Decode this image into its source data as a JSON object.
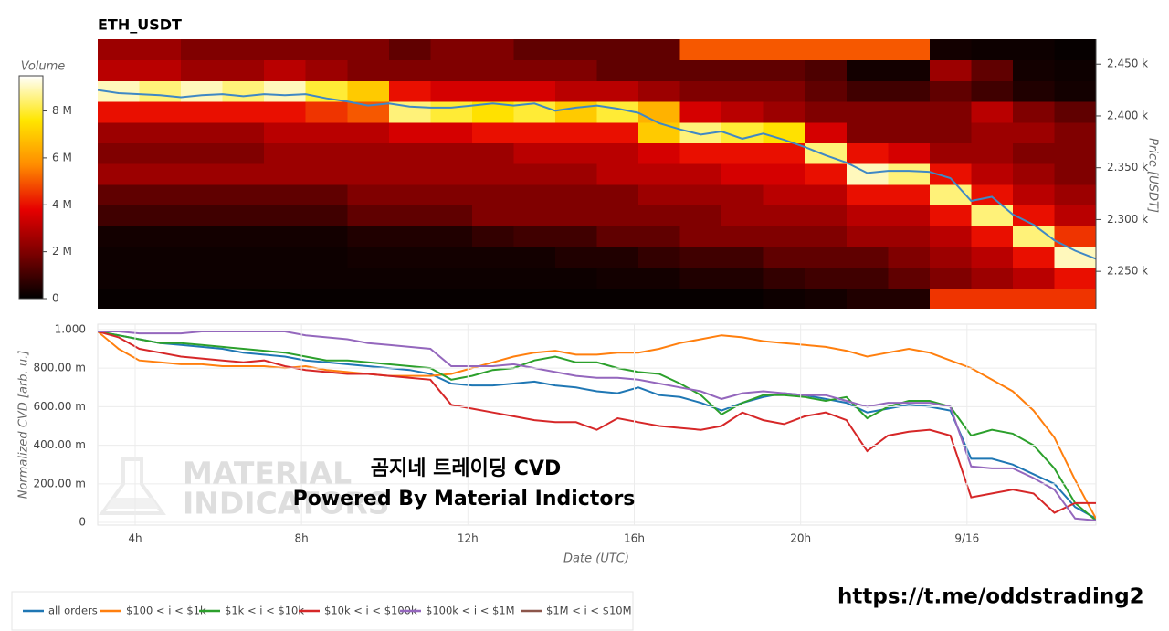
{
  "chart_data": [
    {
      "type": "heatmap",
      "title": "ETH_USDT",
      "x_bins": [
        3.1,
        4.1,
        5.1,
        6.1,
        7.1,
        8.1,
        9.1,
        10.1,
        11.1,
        12.1,
        13.1,
        14.1,
        15.1,
        16.1,
        17.1,
        18.1,
        19.1,
        20.1,
        21.1,
        22.1,
        23.1,
        24.1,
        25.1,
        26.1,
        27.1
      ],
      "y_bins": [
        2214,
        2234,
        2254,
        2274,
        2294,
        2314,
        2334,
        2354,
        2374,
        2394,
        2414,
        2434,
        2454,
        2474
      ],
      "z": [
        [
          0.1,
          0.1,
          0.1,
          0.1,
          0.1,
          0.1,
          0.1,
          0.1,
          0.1,
          0.1,
          0.1,
          0.1,
          0.1,
          0.1,
          0.1,
          0.1,
          0.2,
          0.3,
          0.5,
          0.5,
          4.5,
          4.5,
          4.5,
          4.5
        ],
        [
          0.2,
          0.2,
          0.2,
          0.2,
          0.2,
          0.2,
          0.2,
          0.2,
          0.2,
          0.2,
          0.2,
          0.2,
          0.3,
          0.3,
          0.5,
          0.5,
          0.8,
          1,
          1,
          1.5,
          2,
          2.5,
          3,
          4
        ],
        [
          0.2,
          0.2,
          0.2,
          0.2,
          0.2,
          0.2,
          0.3,
          0.3,
          0.3,
          0.3,
          0.3,
          0.5,
          0.5,
          0.8,
          1,
          1,
          1.5,
          1.5,
          1.5,
          2,
          2.5,
          3,
          4,
          9
        ],
        [
          0.3,
          0.3,
          0.3,
          0.3,
          0.3,
          0.3,
          0.5,
          0.5,
          0.5,
          0.8,
          1,
          1,
          1.5,
          1.5,
          2,
          2,
          2,
          2,
          2.5,
          2.5,
          3,
          4,
          8.5,
          4.5
        ],
        [
          1,
          1,
          1,
          1,
          1,
          1,
          1.5,
          1.5,
          1.5,
          2,
          2,
          2,
          2,
          2,
          2,
          2.5,
          2.5,
          2.5,
          3,
          3,
          4,
          8.5,
          4,
          3
        ],
        [
          1.5,
          1.5,
          1.5,
          1.5,
          1.5,
          1.5,
          2,
          2,
          2,
          2,
          2,
          2,
          2,
          2.5,
          2.5,
          2.5,
          3,
          3,
          4,
          4,
          8.5,
          4,
          3,
          2.5
        ],
        [
          2.5,
          2.5,
          2.5,
          2.5,
          2.5,
          2.5,
          2.5,
          2.5,
          2.5,
          2.5,
          2.5,
          2.5,
          3,
          3,
          3,
          3.5,
          3.5,
          4,
          9,
          8.5,
          4,
          3,
          2.5,
          2
        ],
        [
          2,
          2,
          2,
          2,
          2.5,
          2.5,
          2.5,
          2.5,
          2.5,
          2.5,
          3,
          3,
          3,
          3.5,
          4,
          4,
          4,
          8.5,
          4,
          3.5,
          2.5,
          2.5,
          2,
          2
        ],
        [
          2.5,
          2.5,
          2.5,
          2.5,
          3,
          3,
          3,
          3.5,
          3.5,
          4,
          4,
          4,
          4,
          7,
          8.5,
          8,
          7.5,
          3.5,
          2,
          2,
          2,
          2.5,
          2.5,
          2
        ],
        [
          4,
          4,
          4,
          4,
          4,
          4.5,
          5,
          8.5,
          8,
          7.5,
          8,
          7,
          8,
          6.5,
          3.5,
          3,
          2.5,
          2,
          2,
          2,
          2,
          3,
          2,
          1.5
        ],
        [
          9,
          8.5,
          9,
          8.5,
          9,
          8,
          7,
          4,
          3.5,
          3.5,
          3.5,
          3,
          3,
          2.5,
          2,
          2,
          2,
          1.5,
          1,
          1,
          1.5,
          1,
          0.5,
          0.3
        ],
        [
          3,
          3,
          2.5,
          2.5,
          3,
          2.5,
          2,
          2,
          2,
          2,
          2,
          2,
          1.5,
          1.5,
          1.5,
          1.5,
          1.5,
          1.2,
          0.3,
          0.3,
          2.5,
          1.5,
          0.3,
          0.2
        ],
        [
          2.5,
          2.5,
          2,
          2,
          2,
          2,
          2,
          1.5,
          2,
          2,
          1.5,
          1.5,
          1.5,
          1.5,
          5,
          5,
          5,
          5,
          5,
          5,
          0.3,
          0.2,
          0.2,
          0.1
        ]
      ],
      "colorscale": [
        "#000000",
        "#7a0000",
        "#e60000",
        "#ff8c00",
        "#ffe600",
        "#ffffff"
      ],
      "zlim": [
        0,
        9.5
      ],
      "colorbar_title": "Volume",
      "colorbar_ticks": [
        0,
        {
          "value": 2,
          "label": "2 M"
        },
        {
          "value": 4,
          "label": "4 M"
        },
        {
          "value": 6,
          "label": "6 M"
        },
        {
          "value": 8,
          "label": "8 M"
        }
      ],
      "xlim": [
        3.1,
        27.1
      ],
      "ylim": [
        2214,
        2474
      ],
      "yticks": [
        {
          "value": 2250,
          "label": "2.250 k"
        },
        {
          "value": 2300,
          "label": "2.300 k"
        },
        {
          "value": 2350,
          "label": "2.350 k"
        },
        {
          "value": 2400,
          "label": "2.400 k"
        },
        {
          "value": 2450,
          "label": "2.450 k"
        }
      ],
      "ylabel": "Price [USDT]",
      "price_line": {
        "color": "#3f88c5",
        "x": [
          3.1,
          3.6,
          4.1,
          4.6,
          5.1,
          5.6,
          6.1,
          6.6,
          7.1,
          7.6,
          8.1,
          8.6,
          9.1,
          9.6,
          10.1,
          10.6,
          11.1,
          11.6,
          12.1,
          12.6,
          13.1,
          13.6,
          14.1,
          14.6,
          15.1,
          15.6,
          16.1,
          16.6,
          17.1,
          17.6,
          18.1,
          18.6,
          19.1,
          19.6,
          20.1,
          20.6,
          21.1,
          21.6,
          22.1,
          22.6,
          23.1,
          23.6,
          24.1,
          24.6,
          25.1,
          25.6,
          26.1,
          26.6,
          27.1
        ],
        "values": [
          2425,
          2422,
          2421,
          2420,
          2418,
          2420,
          2421,
          2419,
          2421,
          2420,
          2421,
          2417,
          2414,
          2410,
          2412,
          2409,
          2408,
          2408,
          2410,
          2412,
          2410,
          2412,
          2405,
          2408,
          2410,
          2407,
          2403,
          2393,
          2387,
          2382,
          2385,
          2378,
          2383,
          2377,
          2370,
          2362,
          2355,
          2345,
          2347,
          2347,
          2346,
          2340,
          2318,
          2322,
          2305,
          2295,
          2280,
          2270,
          2262
        ]
      }
    },
    {
      "type": "line",
      "x": [
        3.1,
        3.6,
        4.1,
        4.6,
        5.1,
        5.6,
        6.1,
        6.6,
        7.1,
        7.6,
        8.1,
        8.6,
        9.1,
        9.6,
        10.1,
        10.6,
        11.1,
        11.6,
        12.1,
        12.6,
        13.1,
        13.6,
        14.1,
        14.6,
        15.1,
        15.6,
        16.1,
        16.6,
        17.1,
        17.6,
        18.1,
        18.6,
        19.1,
        19.6,
        20.1,
        20.6,
        21.1,
        21.6,
        22.1,
        22.6,
        23.1,
        23.6,
        24.1,
        24.6,
        25.1,
        25.6,
        26.1,
        26.6,
        27.1
      ],
      "xlim": [
        3.1,
        27.1
      ],
      "xticks": [
        {
          "value": 4,
          "label": "4h"
        },
        {
          "value": 8,
          "label": "8h"
        },
        {
          "value": 12,
          "label": "12h"
        },
        {
          "value": 16,
          "label": "16h"
        },
        {
          "value": 20,
          "label": "20h"
        },
        {
          "value": 24,
          "label": "9/16"
        }
      ],
      "ylim": [
        -0.014,
        1.028
      ],
      "yticks": [
        0,
        {
          "value": 0.2,
          "label": "200.00 m"
        },
        {
          "value": 0.4,
          "label": "400.00 m"
        },
        {
          "value": 0.6,
          "label": "600.00 m"
        },
        {
          "value": 0.8,
          "label": "800.00 m"
        },
        {
          "value": 1,
          "label": "1.000"
        }
      ],
      "grid": true,
      "xlabel": "Date (UTC)",
      "ylabel": "Normalized CVD [arb. u.]",
      "series": [
        {
          "name": "all orders",
          "color": "#1f77b4",
          "values": [
            0.99,
            0.97,
            0.95,
            0.93,
            0.92,
            0.91,
            0.9,
            0.88,
            0.87,
            0.86,
            0.84,
            0.83,
            0.82,
            0.81,
            0.8,
            0.79,
            0.77,
            0.72,
            0.71,
            0.71,
            0.72,
            0.73,
            0.71,
            0.7,
            0.68,
            0.67,
            0.7,
            0.66,
            0.65,
            0.62,
            0.58,
            0.62,
            0.65,
            0.67,
            0.66,
            0.64,
            0.62,
            0.57,
            0.59,
            0.61,
            0.6,
            0.58,
            0.33,
            0.33,
            0.3,
            0.25,
            0.2,
            0.08,
            0.02
          ]
        },
        {
          "name": "$100 < i < $1k",
          "color": "#ff7f0e",
          "values": [
            0.99,
            0.9,
            0.84,
            0.83,
            0.82,
            0.82,
            0.81,
            0.81,
            0.81,
            0.8,
            0.81,
            0.79,
            0.78,
            0.77,
            0.76,
            0.76,
            0.76,
            0.77,
            0.8,
            0.83,
            0.86,
            0.88,
            0.89,
            0.87,
            0.87,
            0.88,
            0.88,
            0.9,
            0.93,
            0.95,
            0.97,
            0.96,
            0.94,
            0.93,
            0.92,
            0.91,
            0.89,
            0.86,
            0.88,
            0.9,
            0.88,
            0.84,
            0.8,
            0.74,
            0.68,
            0.58,
            0.44,
            0.22,
            0.02
          ]
        },
        {
          "name": "$1k < i < $10k",
          "color": "#2ca02c",
          "values": [
            0.99,
            0.97,
            0.95,
            0.93,
            0.93,
            0.92,
            0.91,
            0.9,
            0.89,
            0.88,
            0.86,
            0.84,
            0.84,
            0.83,
            0.82,
            0.81,
            0.8,
            0.74,
            0.76,
            0.79,
            0.8,
            0.84,
            0.86,
            0.83,
            0.83,
            0.8,
            0.78,
            0.77,
            0.72,
            0.66,
            0.56,
            0.62,
            0.66,
            0.66,
            0.65,
            0.63,
            0.65,
            0.54,
            0.6,
            0.63,
            0.63,
            0.6,
            0.45,
            0.48,
            0.46,
            0.4,
            0.28,
            0.1,
            0.01
          ]
        },
        {
          "name": "$10k < i < $100k",
          "color": "#d62728",
          "values": [
            0.99,
            0.96,
            0.9,
            0.88,
            0.86,
            0.85,
            0.84,
            0.83,
            0.84,
            0.81,
            0.79,
            0.78,
            0.77,
            0.77,
            0.76,
            0.75,
            0.74,
            0.61,
            0.59,
            0.57,
            0.55,
            0.53,
            0.52,
            0.52,
            0.48,
            0.54,
            0.52,
            0.5,
            0.49,
            0.48,
            0.5,
            0.57,
            0.53,
            0.51,
            0.55,
            0.57,
            0.53,
            0.37,
            0.45,
            0.47,
            0.48,
            0.45,
            0.13,
            0.15,
            0.17,
            0.15,
            0.05,
            0.1,
            0.1
          ]
        },
        {
          "name": "$100k < i < $1M",
          "color": "#9467bd",
          "values": [
            0.99,
            0.99,
            0.98,
            0.98,
            0.98,
            0.99,
            0.99,
            0.99,
            0.99,
            0.99,
            0.97,
            0.96,
            0.95,
            0.93,
            0.92,
            0.91,
            0.9,
            0.81,
            0.81,
            0.81,
            0.82,
            0.8,
            0.78,
            0.76,
            0.75,
            0.75,
            0.74,
            0.72,
            0.7,
            0.68,
            0.64,
            0.67,
            0.68,
            0.67,
            0.66,
            0.66,
            0.63,
            0.6,
            0.62,
            0.62,
            0.62,
            0.6,
            0.29,
            0.28,
            0.28,
            0.23,
            0.17,
            0.02,
            0.01
          ]
        },
        {
          "name": "$1M < i < $10M",
          "color": "#8c564b",
          "values": [
            null,
            null,
            null,
            null,
            null,
            null,
            null,
            null,
            null,
            null,
            null,
            null,
            null,
            null,
            null,
            null,
            null,
            null,
            null,
            null,
            null,
            null,
            null,
            null,
            null,
            null,
            null,
            null,
            null,
            null,
            null,
            null,
            null,
            null,
            null,
            null,
            null,
            null,
            null,
            null,
            null,
            null,
            null,
            null,
            null,
            null,
            null,
            null,
            null
          ]
        }
      ],
      "annotations": [
        "곰지네 트레이딩 CVD",
        "Powered By Material Indictors"
      ],
      "watermark": [
        "MATERIAL",
        "INDICATORS"
      ]
    }
  ],
  "footer_url": "https://t.me/oddstrading2"
}
